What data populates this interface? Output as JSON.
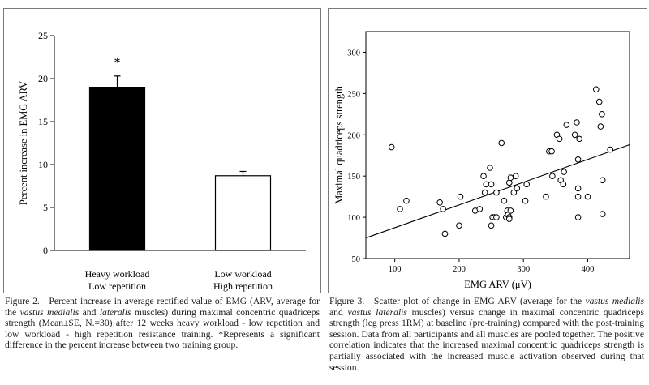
{
  "figure2": {
    "chart_data": {
      "type": "bar",
      "categories": [
        "Heavy workload\nLow repetition",
        "Low workload\nHigh repetition"
      ],
      "values": [
        19.0,
        8.7
      ],
      "errors": [
        1.3,
        0.5
      ],
      "colors": [
        "#000000",
        "#ffffff"
      ],
      "ylabel": "Percent increase in EMG ARV",
      "ylim": [
        0,
        25
      ],
      "yticks": [
        0,
        5,
        10,
        15,
        20,
        25
      ],
      "annotations": [
        {
          "category": 0,
          "text": "*"
        }
      ],
      "grid": false
    },
    "caption": "Figure 2.—Percent increase in average rectified value of EMG (ARV, average for the <i>vastus medialis</i> and <i>lateralis</i> muscles) during maximal concentric quadriceps strength (Mean±SE, N.=30) after 12 weeks heavy workload - low repetition and low workload - high repetition resistance training. *Represents a significant difference in the percent increase between two training group."
  },
  "figure3": {
    "chart_data": {
      "type": "scatter",
      "xlabel": "EMG ARV (μV)",
      "ylabel": "Maximal quadriceps strength",
      "xlim": [
        55,
        465
      ],
      "ylim": [
        50,
        325
      ],
      "xticks": [
        100,
        200,
        300,
        400
      ],
      "yticks": [
        50,
        100,
        150,
        200,
        250,
        300
      ],
      "points": [
        [
          95,
          185
        ],
        [
          108,
          110
        ],
        [
          118,
          120
        ],
        [
          170,
          118
        ],
        [
          175,
          110
        ],
        [
          178,
          80
        ],
        [
          200,
          90
        ],
        [
          202,
          125
        ],
        [
          225,
          108
        ],
        [
          232,
          110
        ],
        [
          238,
          150
        ],
        [
          240,
          130
        ],
        [
          242,
          140
        ],
        [
          248,
          160
        ],
        [
          250,
          140
        ],
        [
          250,
          90
        ],
        [
          252,
          100
        ],
        [
          255,
          100
        ],
        [
          258,
          130
        ],
        [
          258,
          100
        ],
        [
          266,
          190
        ],
        [
          270,
          120
        ],
        [
          273,
          100
        ],
        [
          275,
          108
        ],
        [
          276,
          103
        ],
        [
          278,
          100
        ],
        [
          278,
          98
        ],
        [
          278,
          142
        ],
        [
          280,
          108
        ],
        [
          280,
          148
        ],
        [
          285,
          130
        ],
        [
          288,
          150
        ],
        [
          290,
          135
        ],
        [
          303,
          120
        ],
        [
          305,
          140
        ],
        [
          335,
          125
        ],
        [
          340,
          180
        ],
        [
          344,
          180
        ],
        [
          345,
          150
        ],
        [
          352,
          200
        ],
        [
          356,
          195
        ],
        [
          358,
          145
        ],
        [
          362,
          140
        ],
        [
          363,
          155
        ],
        [
          367,
          212
        ],
        [
          380,
          200
        ],
        [
          383,
          215
        ],
        [
          385,
          170
        ],
        [
          385,
          135
        ],
        [
          385,
          125
        ],
        [
          387,
          195
        ],
        [
          385,
          100
        ],
        [
          400,
          125
        ],
        [
          413,
          255
        ],
        [
          418,
          240
        ],
        [
          420,
          210
        ],
        [
          422,
          225
        ],
        [
          423,
          104
        ],
        [
          423,
          145
        ],
        [
          435,
          182
        ]
      ],
      "fit_line": {
        "x": [
          55,
          465
        ],
        "y": [
          75,
          188
        ]
      },
      "grid": false
    },
    "caption": "Figure 3.—Scatter plot of change in EMG ARV (average for the <i>vastus medialis</i> and <i>vastus lateralis</i> muscles) versus change in maximal concentric quadriceps strength (leg press 1RM) at baseline (pre-training) compared with the post-training session. Data from all participants and all muscles are pooled together. The positive correlation indicates that the increased maximal concentric quadriceps strength is partially associated with the increased muscle activation observed during that session."
  }
}
